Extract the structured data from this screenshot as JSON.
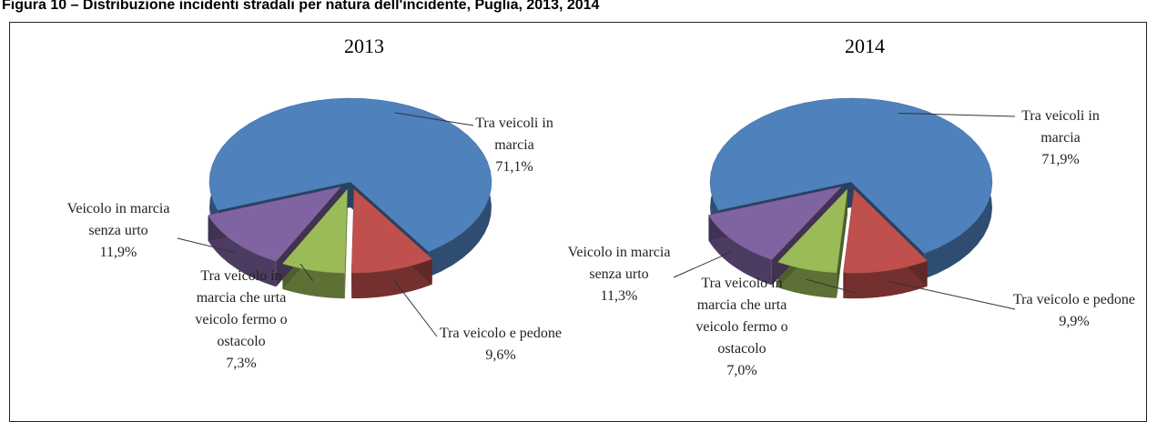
{
  "caption": "Figura 10 – Distribuzione incidenti stradali per natura dell'incidente, Puglia, 2013, 2014",
  "chart_data": [
    {
      "type": "pie",
      "title": "2013",
      "categories": [
        "Tra veicoli in marcia",
        "Tra veicolo e pedone",
        "Tra veicolo in marcia che urta veicolo fermo o ostacolo",
        "Veicolo in marcia senza urto"
      ],
      "values": [
        71.1,
        9.6,
        7.3,
        11.9
      ],
      "value_labels": [
        "71,1%",
        "9,6%",
        "7,3%",
        "11,9%"
      ],
      "colors": [
        "#4f81bd",
        "#c0504d",
        "#9bbb59",
        "#8064a2"
      ]
    },
    {
      "type": "pie",
      "title": "2014",
      "categories": [
        "Tra veicoli in marcia",
        "Tra veicolo e pedone",
        "Tra veicolo in marcia che urta veicolo fermo o ostacolo",
        "Veicolo in marcia senza urto"
      ],
      "values": [
        71.9,
        9.9,
        7.0,
        11.3
      ],
      "value_labels": [
        "71,9%",
        "9,9%",
        "7,0%",
        "11,3%"
      ],
      "colors": [
        "#4f81bd",
        "#c0504d",
        "#9bbb59",
        "#8064a2"
      ]
    }
  ]
}
